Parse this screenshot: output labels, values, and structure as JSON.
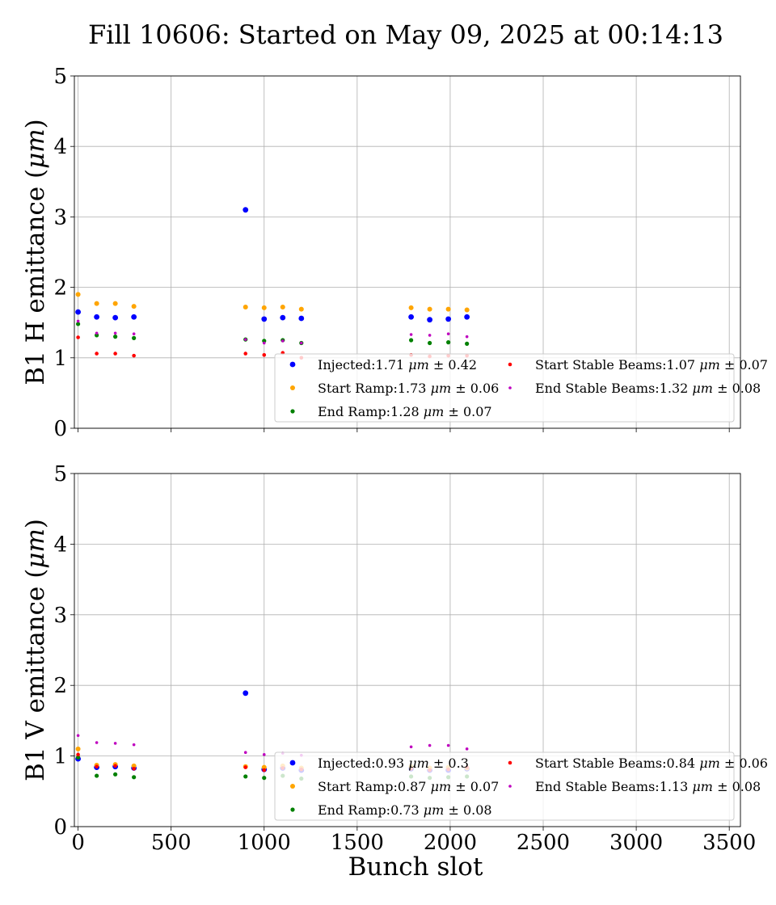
{
  "title": "Fill 10606: Started on May 09, 2025 at 00:14:13",
  "colors": {
    "Injected": "#0000ff",
    "Start Ramp": "#ffa500",
    "End Ramp": "#008000",
    "Start Stable Beams": "#ff0000",
    "End Stable Beams": "#bf00bf",
    "grid": "#b0b0b0"
  },
  "chart_data": [
    {
      "type": "scatter",
      "xlabel": "",
      "ylabel": "B1 H emittance (μm)",
      "xlim": [
        -20,
        3560
      ],
      "ylim": [
        0,
        5
      ],
      "xticks": [
        0,
        500,
        1000,
        1500,
        2000,
        2500,
        3000,
        3500
      ],
      "yticks": [
        0,
        1,
        2,
        3,
        4,
        5
      ],
      "show_xticklabels": false,
      "grid": true,
      "legend_position": "lower-right",
      "legend": [
        {
          "series": "Injected",
          "label": "Injected:1.71 μm ± 0.42"
        },
        {
          "series": "Start Ramp",
          "label": "Start Ramp:1.73 μm ± 0.06"
        },
        {
          "series": "End Ramp",
          "label": "End Ramp:1.28 μm ± 0.07"
        },
        {
          "series": "Start Stable Beams",
          "label": "Start Stable Beams:1.07 μm ± 0.07"
        },
        {
          "series": "End Stable Beams",
          "label": "End Stable Beams:1.32 μm ± 0.08"
        }
      ],
      "series": [
        {
          "name": "Injected",
          "x": [
            0,
            100,
            200,
            300,
            900,
            1000,
            1100,
            1200,
            1790,
            1890,
            1990,
            2090
          ],
          "y": [
            1.65,
            1.58,
            1.57,
            1.58,
            3.1,
            1.55,
            1.57,
            1.56,
            1.58,
            1.54,
            1.55,
            1.58
          ]
        },
        {
          "name": "Start Ramp",
          "x": [
            0,
            100,
            200,
            300,
            900,
            1000,
            1100,
            1200,
            1790,
            1890,
            1990,
            2090
          ],
          "y": [
            1.9,
            1.77,
            1.77,
            1.73,
            1.72,
            1.71,
            1.72,
            1.69,
            1.71,
            1.69,
            1.69,
            1.68
          ]
        },
        {
          "name": "End Ramp",
          "x": [
            0,
            100,
            200,
            300,
            900,
            1000,
            1100,
            1200,
            1790,
            1890,
            1990,
            2090
          ],
          "y": [
            1.48,
            1.32,
            1.3,
            1.28,
            1.26,
            1.24,
            1.25,
            1.21,
            1.25,
            1.21,
            1.22,
            1.2
          ]
        },
        {
          "name": "Start Stable Beams",
          "x": [
            0,
            100,
            200,
            300,
            900,
            1000,
            1100,
            1200,
            1790,
            1890,
            1990,
            2090
          ],
          "y": [
            1.29,
            1.06,
            1.06,
            1.03,
            1.06,
            1.04,
            1.07,
            1.0,
            1.04,
            1.02,
            1.03,
            1.03
          ]
        },
        {
          "name": "End Stable Beams",
          "x": [
            0,
            100,
            200,
            300,
            900,
            1000,
            1100,
            1200,
            1790,
            1890,
            1990,
            2090
          ],
          "y": [
            1.52,
            1.35,
            1.35,
            1.34,
            1.26,
            1.21,
            1.24,
            1.21,
            1.33,
            1.32,
            1.34,
            1.3
          ]
        }
      ]
    },
    {
      "type": "scatter",
      "xlabel": "Bunch slot",
      "ylabel": "B1 V emittance (μm)",
      "xlim": [
        -20,
        3560
      ],
      "ylim": [
        0,
        5
      ],
      "xticks": [
        0,
        500,
        1000,
        1500,
        2000,
        2500,
        3000,
        3500
      ],
      "yticks": [
        0,
        1,
        2,
        3,
        4,
        5
      ],
      "show_xticklabels": true,
      "grid": true,
      "legend_position": "lower-right",
      "legend": [
        {
          "series": "Injected",
          "label": "Injected:0.93 μm ± 0.3"
        },
        {
          "series": "Start Ramp",
          "label": "Start Ramp:0.87 μm ± 0.07"
        },
        {
          "series": "End Ramp",
          "label": "End Ramp:0.73 μm ± 0.08"
        },
        {
          "series": "Start Stable Beams",
          "label": "Start Stable Beams:0.84 μm ± 0.06"
        },
        {
          "series": "End Stable Beams",
          "label": "End Stable Beams:1.13 μm ± 0.08"
        }
      ],
      "series": [
        {
          "name": "Injected",
          "x": [
            0,
            100,
            200,
            300,
            900,
            1000,
            1100,
            1200,
            1790,
            1890,
            1990,
            2090
          ],
          "y": [
            0.96,
            0.84,
            0.85,
            0.83,
            1.89,
            0.81,
            0.83,
            0.8,
            0.82,
            0.8,
            0.8,
            0.82
          ]
        },
        {
          "name": "Start Ramp",
          "x": [
            0,
            100,
            200,
            300,
            900,
            1000,
            1100,
            1200,
            1790,
            1890,
            1990,
            2090
          ],
          "y": [
            1.1,
            0.87,
            0.88,
            0.86,
            0.85,
            0.84,
            0.86,
            0.83,
            0.85,
            0.83,
            0.84,
            0.83
          ]
        },
        {
          "name": "End Ramp",
          "x": [
            0,
            100,
            200,
            300,
            900,
            1000,
            1100,
            1200,
            1790,
            1890,
            1990,
            2090
          ],
          "y": [
            0.98,
            0.72,
            0.74,
            0.7,
            0.71,
            0.69,
            0.72,
            0.68,
            0.71,
            0.69,
            0.7,
            0.71
          ]
        },
        {
          "name": "Start Stable Beams",
          "x": [
            0,
            100,
            200,
            300,
            900,
            1000,
            1100,
            1200,
            1790,
            1890,
            1990,
            2090
          ],
          "y": [
            1.02,
            0.85,
            0.86,
            0.82,
            0.84,
            0.8,
            0.83,
            0.81,
            0.82,
            0.8,
            0.81,
            0.84
          ]
        },
        {
          "name": "End Stable Beams",
          "x": [
            0,
            100,
            200,
            300,
            900,
            1000,
            1100,
            1200,
            1790,
            1890,
            1990,
            2090
          ],
          "y": [
            1.29,
            1.19,
            1.18,
            1.16,
            1.05,
            1.02,
            1.04,
            1.01,
            1.13,
            1.15,
            1.15,
            1.1
          ]
        }
      ]
    }
  ]
}
